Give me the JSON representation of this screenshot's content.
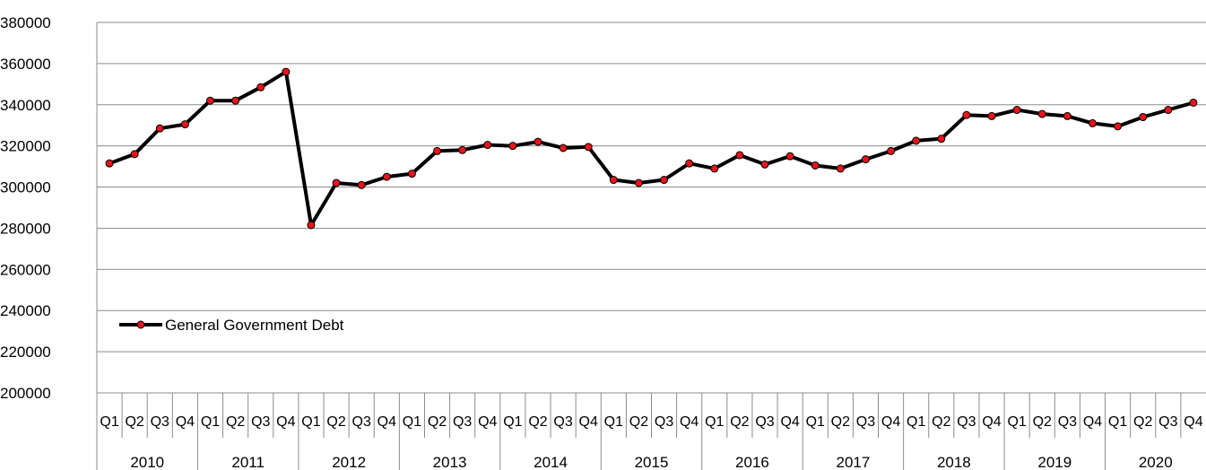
{
  "chart_data": {
    "type": "line",
    "title": "",
    "xlabel": "",
    "ylabel": "",
    "ylim": [
      200000,
      380000
    ],
    "yticks": [
      200000,
      220000,
      240000,
      260000,
      280000,
      300000,
      320000,
      340000,
      360000,
      380000
    ],
    "grid": "horizontal",
    "legend_position": "left",
    "years": [
      "2010",
      "2011",
      "2012",
      "2013",
      "2014",
      "2015",
      "2016",
      "2017",
      "2018",
      "2019",
      "2020"
    ],
    "quarters": [
      "Q1",
      "Q2",
      "Q3",
      "Q4"
    ],
    "series": [
      {
        "name": "General Government Debt",
        "line_color": "#000000",
        "marker_color": "#e8141b",
        "values": [
          311500,
          316000,
          328500,
          330500,
          342000,
          342000,
          348500,
          356000,
          281500,
          302000,
          301000,
          305000,
          306500,
          317500,
          318000,
          320500,
          320000,
          322000,
          319000,
          319500,
          303500,
          302000,
          303500,
          311500,
          309000,
          315500,
          311000,
          315000,
          310500,
          309000,
          313500,
          317500,
          322500,
          323500,
          335000,
          334500,
          337500,
          335500,
          334500,
          331000,
          329500,
          334000,
          337500,
          341000
        ]
      }
    ]
  }
}
